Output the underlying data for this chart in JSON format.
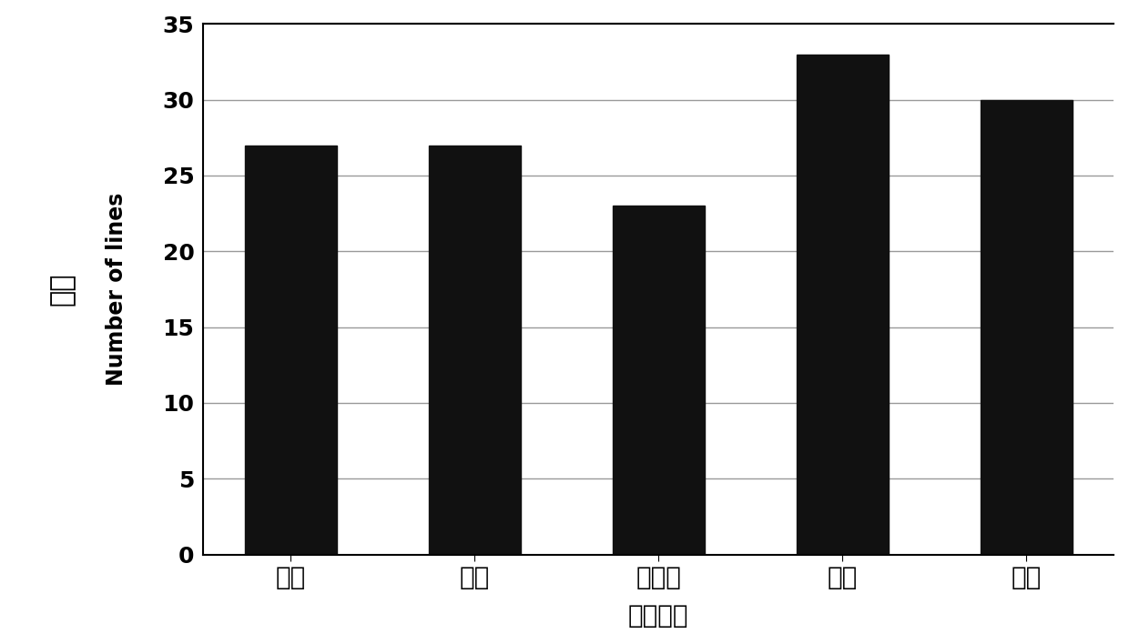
{
  "categories": [
    "黄白",
    "白绿",
    "浅绿色",
    "绿色",
    "深绿"
  ],
  "values": [
    27,
    27,
    23,
    33,
    30
  ],
  "bar_color": "#111111",
  "xlabel": "娩瓜皮色",
  "ylabel_chinese": "株数",
  "ylabel_english": "Number of lines",
  "ylim": [
    0,
    35
  ],
  "yticks": [
    0,
    5,
    10,
    15,
    20,
    25,
    30,
    35
  ],
  "background_color": "#ffffff",
  "bar_width": 0.5,
  "xlabel_fontsize": 20,
  "ylabel_chinese_fontsize": 22,
  "ylabel_english_fontsize": 17,
  "tick_fontsize": 18,
  "xtick_fontsize": 20,
  "grid_color": "#999999",
  "grid_linewidth": 1.0
}
